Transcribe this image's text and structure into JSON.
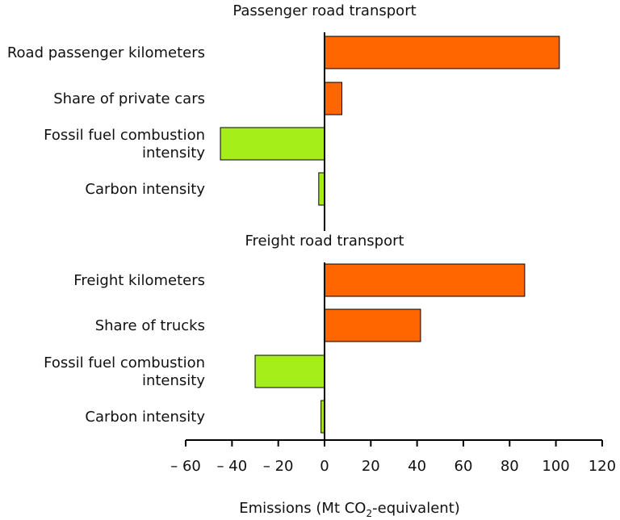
{
  "chart_data": {
    "type": "bar",
    "orientation": "horizontal",
    "xlabel": "Emissions (Mt CO₂-equivalent)",
    "xlabel_parts": {
      "prefix": "Emissions (Mt CO",
      "subscript": "2",
      "suffix": "-equivalent)"
    },
    "xlim": [
      -60,
      120
    ],
    "xticks": [
      -60,
      -40,
      -20,
      0,
      20,
      40,
      60,
      80,
      100,
      120
    ],
    "xtick_labels": [
      "– 60",
      "– 40",
      "– 20",
      "0",
      "20",
      "40",
      "60",
      "80",
      "100",
      "120"
    ],
    "grid": false,
    "colors": {
      "positive": "#ff6600",
      "negative": "#a6ee1a",
      "outline": "#000000"
    },
    "panels": [
      {
        "title": "Passenger road transport",
        "categories": [
          [
            "Road passenger kilometers"
          ],
          [
            "Share of private cars"
          ],
          [
            "Fossil fuel combustion",
            "intensity"
          ],
          [
            "Carbon intensity"
          ]
        ],
        "values": [
          101.5,
          7.5,
          -45,
          -2.5
        ]
      },
      {
        "title": "Freight road transport",
        "categories": [
          [
            "Freight kilometers"
          ],
          [
            "Share of trucks"
          ],
          [
            "Fossil fuel combustion",
            "intensity"
          ],
          [
            "Carbon intensity"
          ]
        ],
        "values": [
          86.5,
          41.5,
          -30,
          -1.5
        ]
      }
    ]
  }
}
